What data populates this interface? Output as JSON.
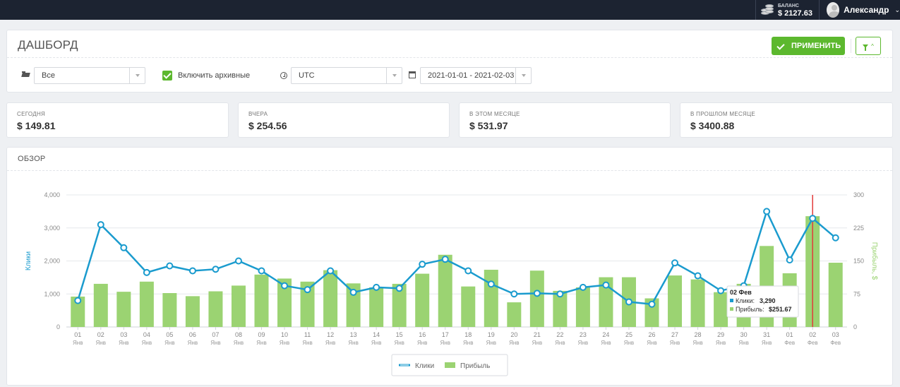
{
  "topbar": {
    "balance_label": "БАЛАНС",
    "balance_value": "$ 2127.63",
    "user_name": "Александр"
  },
  "dashboard": {
    "title": "ДАШБОРД",
    "apply_label": "ПРИМЕНИТЬ",
    "campaign_select": "Все",
    "archive_label": "Включить архивные",
    "archive_checked": true,
    "timezone_select": "UTC",
    "date_range": "2021-01-01 - 2021-02-03"
  },
  "stats": [
    {
      "label": "СЕГОДНЯ",
      "value": "$ 149.81"
    },
    {
      "label": "ВЧЕРА",
      "value": "$ 254.56"
    },
    {
      "label": "В ЭТОМ МЕСЯЦЕ",
      "value": "$ 531.97"
    },
    {
      "label": "В ПРОШЛОМ МЕСЯЦЕ",
      "value": "$ 3400.88"
    }
  ],
  "overview": {
    "title": "ОБЗОР"
  },
  "colors": {
    "clicks": "#1a9bce",
    "profit": "#9bd372",
    "accent": "#5cb82e",
    "marker": "#e23b3b"
  },
  "chart_data": {
    "type": "bar+line",
    "x_days": [
      "01",
      "02",
      "03",
      "04",
      "05",
      "06",
      "07",
      "08",
      "09",
      "10",
      "11",
      "12",
      "13",
      "14",
      "15",
      "16",
      "17",
      "18",
      "19",
      "20",
      "21",
      "22",
      "23",
      "24",
      "25",
      "26",
      "27",
      "28",
      "29",
      "30",
      "31",
      "01",
      "02",
      "03"
    ],
    "x_months": [
      "Янв",
      "Янв",
      "Янв",
      "Янв",
      "Янв",
      "Янв",
      "Янв",
      "Янв",
      "Янв",
      "Янв",
      "Янв",
      "Янв",
      "Янв",
      "Янв",
      "Янв",
      "Янв",
      "Янв",
      "Янв",
      "Янв",
      "Янв",
      "Янв",
      "Янв",
      "Янв",
      "Янв",
      "Янв",
      "Янв",
      "Янв",
      "Янв",
      "Янв",
      "Янв",
      "Янв",
      "Фев",
      "Фев",
      "Фев"
    ],
    "ylabel_left": "Клики",
    "ylabel_right": "Прибыль, $",
    "ylim_left": [
      0,
      4000
    ],
    "ylim_right": [
      0,
      300
    ],
    "yticks_left": [
      "0",
      "1,000",
      "2,000",
      "3,000",
      "4,000"
    ],
    "yticks_right": [
      "0",
      "75",
      "150",
      "225",
      "300"
    ],
    "series": [
      {
        "name": "Клики",
        "type": "line",
        "axis": "left",
        "values": [
          800,
          3100,
          2400,
          1650,
          1850,
          1700,
          1750,
          2000,
          1700,
          1250,
          1130,
          1700,
          1050,
          1200,
          1170,
          1900,
          2050,
          1700,
          1300,
          1000,
          1020,
          1000,
          1200,
          1270,
          760,
          690,
          1940,
          1550,
          1100,
          1250,
          3500,
          2030,
          3290,
          2700
        ]
      },
      {
        "name": "Прибыль",
        "type": "bar",
        "axis": "right",
        "values": [
          69,
          98,
          80,
          103,
          77,
          70,
          81,
          94,
          119,
          110,
          103,
          129,
          99,
          90,
          98,
          121,
          164,
          92,
          130,
          56,
          128,
          82,
          90,
          113,
          113,
          65,
          117,
          108,
          79,
          98,
          184,
          122,
          251.67,
          146
        ]
      }
    ],
    "legend": [
      "Клики",
      "Прибыль"
    ],
    "legend_position": "bottom-center",
    "grid": true,
    "tooltip": {
      "title": "02 Фев",
      "clicks_label": "Клики:",
      "clicks_value": "3,290",
      "profit_label": "Прибыль:",
      "profit_value": "$251.67"
    },
    "highlight_index": 32
  }
}
